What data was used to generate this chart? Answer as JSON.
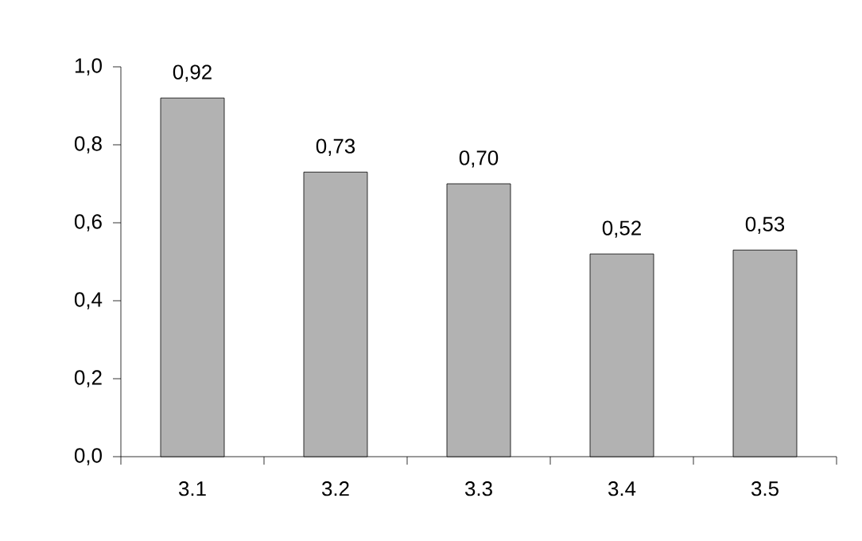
{
  "chart_data": {
    "type": "bar",
    "categories": [
      "3.1",
      "3.2",
      "3.3",
      "3.4",
      "3.5"
    ],
    "values": [
      0.92,
      0.73,
      0.7,
      0.52,
      0.53
    ],
    "value_labels": [
      "0,92",
      "0,73",
      "0,70",
      "0,52",
      "0,53"
    ],
    "color": "#b2b2b2",
    "ylim": [
      0,
      1
    ],
    "yticks": [
      {
        "value": 0,
        "label": "0,0"
      },
      {
        "value": 0.2,
        "label": "0,2"
      },
      {
        "value": 0.4,
        "label": "0,4"
      },
      {
        "value": 0.6,
        "label": "0,6"
      },
      {
        "value": 0.8,
        "label": "0,8"
      },
      {
        "value": 1,
        "label": "1,0"
      }
    ]
  }
}
